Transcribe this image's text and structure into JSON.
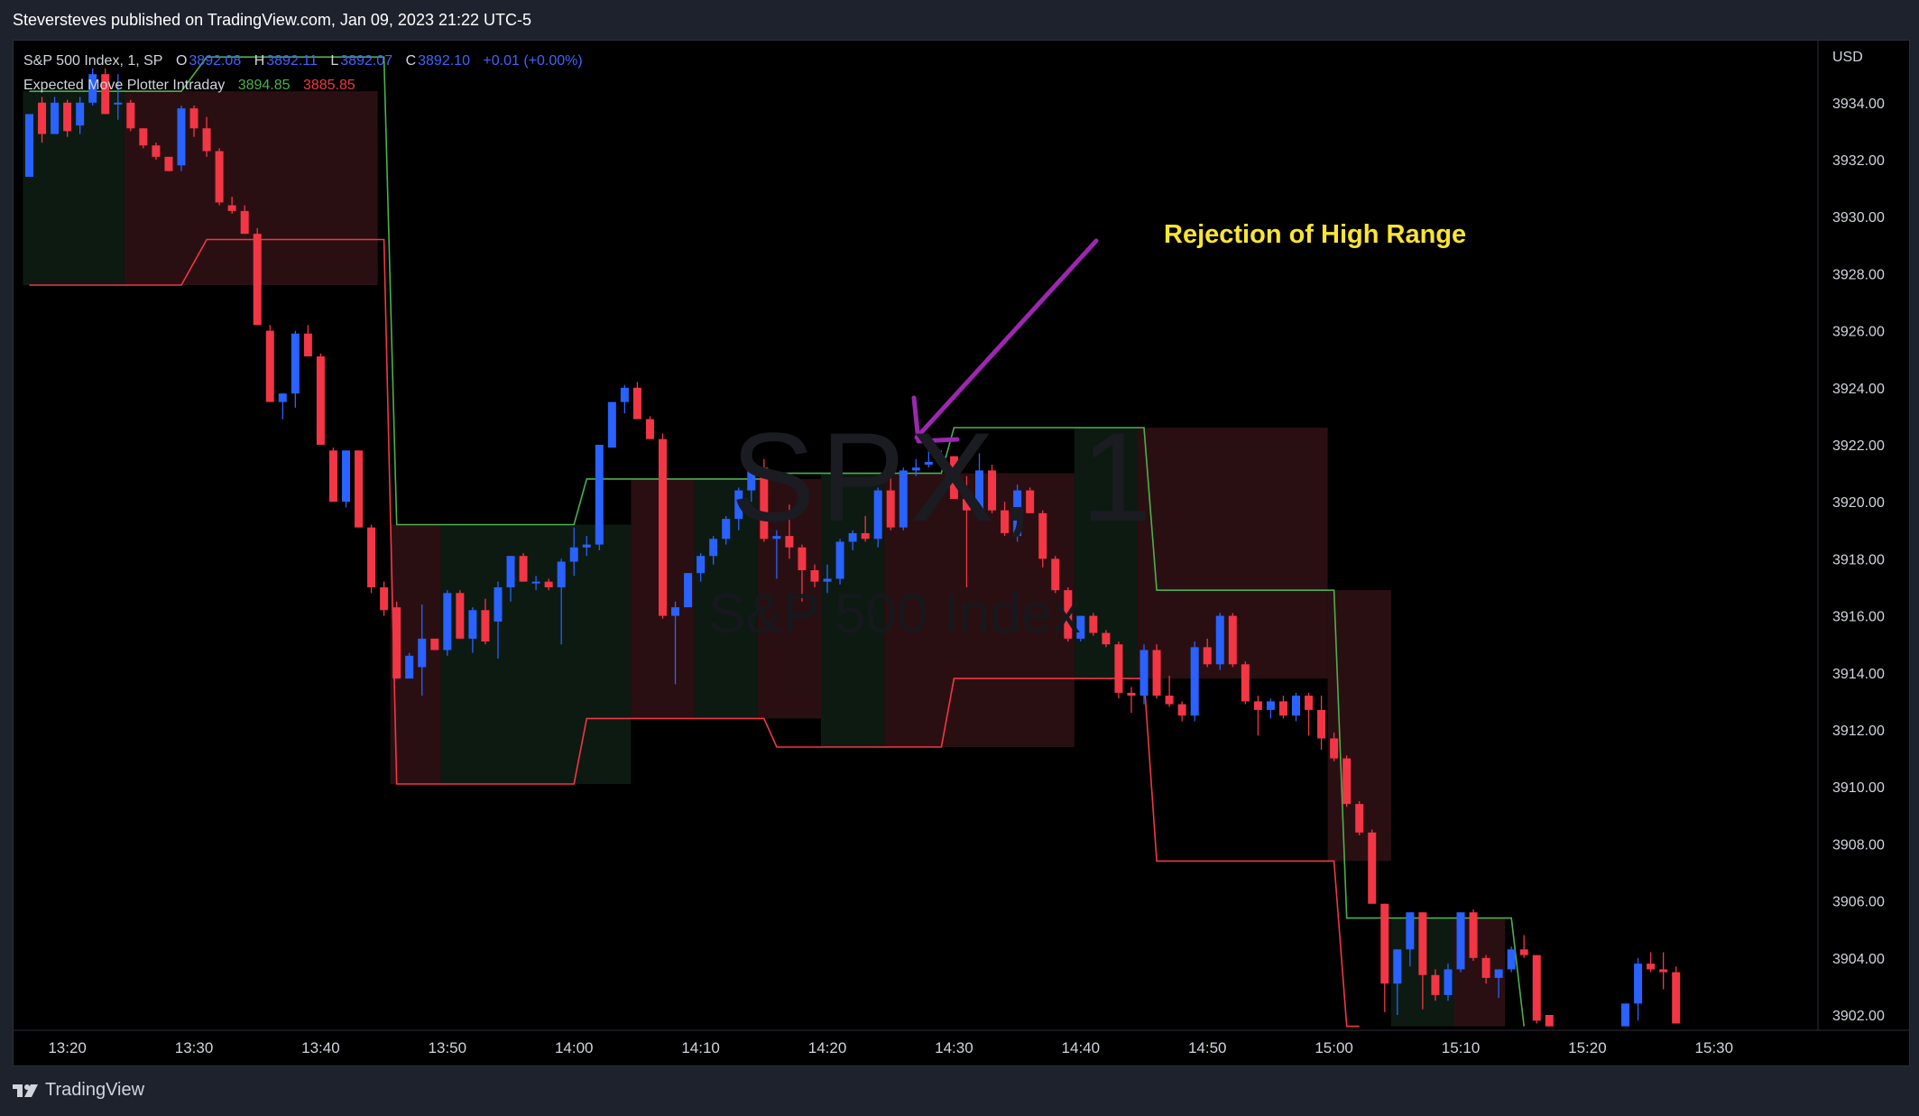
{
  "header": {
    "publish_text": "Steversteves published on TradingView.com, Jan 09, 2023 21:22 UTC-5"
  },
  "legend": {
    "symbol": "S&P 500 Index, 1, SP",
    "o_label": "O",
    "o_value": "3892.08",
    "h_label": "H",
    "h_value": "3892.11",
    "l_label": "L",
    "l_value": "3892.07",
    "c_label": "C",
    "c_value": "3892.10",
    "change": "+0.01 (+0.00%)",
    "indicator_name": "Expected Move Plotter Intraday",
    "indicator_high": "3894.85",
    "indicator_low": "3885.85"
  },
  "watermark": {
    "symbol": "SPX, 1",
    "name": "S&P 500 Index"
  },
  "annotation": {
    "text": "Rejection of High Range"
  },
  "footer": {
    "brand": "TradingView"
  },
  "colors": {
    "background": "#000000",
    "up": "#2962ff",
    "down": "#f23645",
    "upper_band": "#4caf50",
    "lower_band": "#f23645",
    "annotation": "#fbe531",
    "arrow": "#9c27b0"
  },
  "chart_data": {
    "type": "candlestick",
    "currency_label": "USD",
    "ylim": [
      3901.6,
      3935.6
    ],
    "y_ticks": [
      "3934.00",
      "3932.00",
      "3930.00",
      "3928.00",
      "3926.00",
      "3924.00",
      "3922.00",
      "3920.00",
      "3918.00",
      "3916.00",
      "3914.00",
      "3912.00",
      "3910.00",
      "3908.00",
      "3906.00",
      "3904.00",
      "3902.00"
    ],
    "x_ticks": [
      "13:20",
      "13:30",
      "13:40",
      "13:50",
      "14:00",
      "14:10",
      "14:20",
      "14:30",
      "14:40",
      "14:50",
      "15:00",
      "15:10",
      "15:20",
      "15:30"
    ],
    "candles_ohlc": [
      [
        3931.4,
        3933.6,
        3931.4,
        3933.6
      ],
      [
        3934.0,
        3934.2,
        3932.6,
        3932.9
      ],
      [
        3932.9,
        3934.2,
        3932.9,
        3934.0
      ],
      [
        3934.0,
        3934.1,
        3932.8,
        3933.0
      ],
      [
        3933.2,
        3934.2,
        3932.9,
        3934.0
      ],
      [
        3934.0,
        3935.2,
        3933.9,
        3935.0
      ],
      [
        3935.0,
        3935.2,
        3933.6,
        3933.6
      ],
      [
        3934.0,
        3935.0,
        3933.4,
        3934.0
      ],
      [
        3934.0,
        3934.1,
        3933.0,
        3933.1
      ],
      [
        3933.1,
        3933.1,
        3932.4,
        3932.5
      ],
      [
        3932.5,
        3932.6,
        3932.0,
        3932.1
      ],
      [
        3932.1,
        3932.1,
        3931.6,
        3931.6
      ],
      [
        3931.8,
        3933.9,
        3931.6,
        3933.8
      ],
      [
        3933.8,
        3933.9,
        3932.8,
        3933.1
      ],
      [
        3933.1,
        3933.5,
        3932.1,
        3932.3
      ],
      [
        3932.3,
        3932.4,
        3930.4,
        3930.5
      ],
      [
        3930.4,
        3930.7,
        3930.1,
        3930.2
      ],
      [
        3930.2,
        3930.4,
        3929.4,
        3929.4
      ],
      [
        3929.4,
        3929.6,
        3926.2,
        3926.2
      ],
      [
        3926.0,
        3926.2,
        3923.5,
        3923.5
      ],
      [
        3923.5,
        3923.8,
        3922.9,
        3923.8
      ],
      [
        3923.8,
        3926.0,
        3923.3,
        3925.9
      ],
      [
        3925.9,
        3926.2,
        3925.1,
        3925.1
      ],
      [
        3925.1,
        3925.2,
        3922.0,
        3922.0
      ],
      [
        3921.8,
        3921.9,
        3920.0,
        3920.0
      ],
      [
        3920.0,
        3921.8,
        3919.8,
        3921.8
      ],
      [
        3921.8,
        3921.8,
        3919.1,
        3919.1
      ],
      [
        3919.1,
        3919.2,
        3916.8,
        3917.0
      ],
      [
        3917.0,
        3917.2,
        3916.0,
        3916.2
      ],
      [
        3916.3,
        3916.5,
        3913.8,
        3913.8
      ],
      [
        3913.8,
        3914.0,
        3914.7,
        3914.6
      ],
      [
        3914.2,
        3916.4,
        3913.2,
        3915.2
      ],
      [
        3915.2,
        3915.2,
        3914.8,
        3914.8
      ],
      [
        3914.8,
        3916.9,
        3914.6,
        3916.8
      ],
      [
        3916.8,
        3916.9,
        3915.2,
        3915.2
      ],
      [
        3915.2,
        3916.3,
        3914.7,
        3916.2
      ],
      [
        3916.2,
        3916.6,
        3915.0,
        3915.1
      ],
      [
        3915.8,
        3917.2,
        3914.5,
        3917.0
      ],
      [
        3917.0,
        3918.1,
        3916.5,
        3918.1
      ],
      [
        3918.1,
        3918.2,
        3917.2,
        3917.2
      ],
      [
        3917.2,
        3917.4,
        3916.9,
        3917.2
      ],
      [
        3917.2,
        3917.3,
        3916.9,
        3917.0
      ],
      [
        3917.0,
        3918.0,
        3915.0,
        3917.9
      ],
      [
        3917.9,
        3919.1,
        3917.4,
        3918.4
      ],
      [
        3918.4,
        3918.8,
        3918.1,
        3918.5
      ],
      [
        3918.5,
        3922.0,
        3918.3,
        3922.0
      ],
      [
        3921.9,
        3923.5,
        3921.9,
        3923.5
      ],
      [
        3923.5,
        3924.1,
        3923.1,
        3924.0
      ],
      [
        3924.0,
        3924.2,
        3922.9,
        3922.9
      ],
      [
        3922.9,
        3923.0,
        3922.2,
        3922.2
      ],
      [
        3922.2,
        3922.4,
        3915.9,
        3916.0
      ],
      [
        3916.0,
        3916.5,
        3913.6,
        3916.3
      ],
      [
        3916.3,
        3917.5,
        3916.3,
        3917.5
      ],
      [
        3917.5,
        3918.2,
        3917.2,
        3918.1
      ],
      [
        3918.1,
        3918.8,
        3917.8,
        3918.7
      ],
      [
        3918.7,
        3919.5,
        3918.5,
        3919.4
      ],
      [
        3919.4,
        3920.5,
        3919.0,
        3920.4
      ],
      [
        3920.4,
        3921.5,
        3920.0,
        3921.2
      ],
      [
        3921.2,
        3921.5,
        3918.6,
        3918.7
      ],
      [
        3918.7,
        3919.0,
        3917.3,
        3918.8
      ],
      [
        3918.8,
        3919.9,
        3918.0,
        3918.4
      ],
      [
        3918.4,
        3918.5,
        3916.5,
        3917.6
      ],
      [
        3917.6,
        3917.8,
        3917.0,
        3917.2
      ],
      [
        3917.2,
        3917.8,
        3916.8,
        3917.3
      ],
      [
        3917.3,
        3918.7,
        3917.1,
        3918.6
      ],
      [
        3918.6,
        3919.0,
        3918.3,
        3918.9
      ],
      [
        3918.9,
        3919.5,
        3918.6,
        3918.7
      ],
      [
        3918.7,
        3920.5,
        3918.4,
        3920.4
      ],
      [
        3920.4,
        3921.0,
        3919.0,
        3919.1
      ],
      [
        3919.1,
        3921.2,
        3919.0,
        3921.1
      ],
      [
        3921.1,
        3921.5,
        3920.9,
        3921.2
      ],
      [
        3921.3,
        3921.9,
        3921.2,
        3921.4
      ],
      [
        3921.4,
        3921.8,
        3921.2,
        3921.6
      ],
      [
        3921.6,
        3921.6,
        3920.1,
        3920.1
      ],
      [
        3920.1,
        3920.9,
        3917.0,
        3919.7
      ],
      [
        3919.7,
        3921.7,
        3919.5,
        3921.1
      ],
      [
        3921.1,
        3921.3,
        3919.6,
        3919.7
      ],
      [
        3919.7,
        3920.0,
        3918.8,
        3918.9
      ],
      [
        3918.8,
        3920.6,
        3918.6,
        3920.4
      ],
      [
        3920.4,
        3920.5,
        3919.6,
        3919.6
      ],
      [
        3919.6,
        3919.7,
        3917.7,
        3918.0
      ],
      [
        3918.0,
        3918.1,
        3916.8,
        3916.9
      ],
      [
        3916.9,
        3917.0,
        3915.1,
        3915.2
      ],
      [
        3915.2,
        3916.0,
        3915.1,
        3916.0
      ],
      [
        3916.0,
        3916.1,
        3915.3,
        3915.4
      ],
      [
        3915.4,
        3915.5,
        3914.9,
        3915.0
      ],
      [
        3915.0,
        3915.1,
        3913.1,
        3913.3
      ],
      [
        3913.3,
        3913.5,
        3912.6,
        3913.2
      ],
      [
        3913.2,
        3915.0,
        3912.9,
        3914.8
      ],
      [
        3914.8,
        3915.0,
        3913.1,
        3913.2
      ],
      [
        3913.2,
        3913.9,
        3912.8,
        3912.9
      ],
      [
        3912.9,
        3913.0,
        3912.3,
        3912.5
      ],
      [
        3912.5,
        3915.1,
        3912.3,
        3914.9
      ],
      [
        3914.9,
        3915.2,
        3914.2,
        3914.3
      ],
      [
        3914.3,
        3916.1,
        3914.1,
        3916.0
      ],
      [
        3916.0,
        3916.1,
        3914.2,
        3914.3
      ],
      [
        3914.3,
        3914.4,
        3912.9,
        3913.0
      ],
      [
        3913.0,
        3913.2,
        3911.8,
        3912.7
      ],
      [
        3912.7,
        3913.1,
        3912.4,
        3913.0
      ],
      [
        3913.0,
        3913.2,
        3912.4,
        3912.5
      ],
      [
        3912.5,
        3913.3,
        3912.3,
        3913.2
      ],
      [
        3913.2,
        3913.3,
        3911.8,
        3912.7
      ],
      [
        3912.7,
        3913.2,
        3911.3,
        3911.7
      ],
      [
        3911.7,
        3911.9,
        3910.9,
        3911.0
      ],
      [
        3911.0,
        3911.1,
        3909.3,
        3909.4
      ],
      [
        3909.4,
        3909.5,
        3908.3,
        3908.4
      ],
      [
        3908.4,
        3908.5,
        3905.9,
        3905.9
      ],
      [
        3905.9,
        3905.9,
        3902.1,
        3903.1
      ],
      [
        3903.1,
        3904.3,
        3902.0,
        3904.3
      ],
      [
        3904.3,
        3905.6,
        3903.7,
        3905.6
      ],
      [
        3905.6,
        3905.6,
        3902.2,
        3903.4
      ],
      [
        3903.4,
        3903.6,
        3902.5,
        3902.7
      ],
      [
        3902.7,
        3903.8,
        3902.5,
        3903.6
      ],
      [
        3903.6,
        3905.6,
        3903.5,
        3905.6
      ],
      [
        3905.6,
        3905.7,
        3903.9,
        3904.0
      ],
      [
        3904.0,
        3904.1,
        3903.1,
        3903.3
      ],
      [
        3903.3,
        3903.5,
        3902.6,
        3903.6
      ],
      [
        3903.6,
        3904.4,
        3903.5,
        3904.3
      ],
      [
        3904.3,
        3904.8,
        3904.0,
        3904.1
      ],
      [
        3904.1,
        3904.1,
        3901.7,
        3901.8
      ],
      [
        3902.0,
        3902.0,
        3901.6,
        3901.6
      ],
      [
        null,
        null,
        null,
        null
      ],
      [
        null,
        null,
        null,
        null
      ],
      [
        null,
        null,
        null,
        null
      ],
      [
        null,
        null,
        null,
        null
      ],
      [
        null,
        null,
        null,
        null
      ],
      [
        3901.6,
        3902.4,
        3901.6,
        3902.4
      ],
      [
        3902.4,
        3904.0,
        3901.8,
        3903.8
      ],
      [
        3903.8,
        3904.2,
        3903.5,
        3903.6
      ],
      [
        3903.6,
        3904.2,
        3902.9,
        3903.5
      ],
      [
        3903.5,
        3903.7,
        3901.7,
        3901.7
      ]
    ],
    "upper_band": [
      [
        0,
        3934.4
      ],
      [
        12,
        3934.4
      ],
      [
        14,
        3935.6
      ],
      [
        28,
        3935.6
      ],
      [
        29,
        3919.2
      ],
      [
        43,
        3919.2
      ],
      [
        44,
        3920.8
      ],
      [
        58,
        3920.8
      ],
      [
        59,
        3921.0
      ],
      [
        72,
        3921.0
      ],
      [
        73,
        3922.6
      ],
      [
        88,
        3922.6
      ],
      [
        89,
        3916.9
      ],
      [
        103,
        3916.9
      ],
      [
        104,
        3905.4
      ],
      [
        117,
        3905.4
      ],
      [
        118,
        3901.6
      ]
    ],
    "lower_band": [
      [
        0,
        3927.6
      ],
      [
        12,
        3927.6
      ],
      [
        14,
        3929.2
      ],
      [
        28,
        3929.2
      ],
      [
        29,
        3910.1
      ],
      [
        43,
        3910.1
      ],
      [
        44,
        3912.4
      ],
      [
        58,
        3912.4
      ],
      [
        59,
        3911.4
      ],
      [
        72,
        3911.4
      ],
      [
        73,
        3913.8
      ],
      [
        88,
        3913.8
      ],
      [
        89,
        3907.4
      ],
      [
        103,
        3907.4
      ],
      [
        104,
        3901.6
      ],
      [
        105,
        3901.6
      ]
    ],
    "zones": [
      {
        "from": 0,
        "to": 8,
        "type": "up"
      },
      {
        "from": 8,
        "to": 28,
        "type": "down"
      },
      {
        "from": 29,
        "to": 33,
        "type": "down"
      },
      {
        "from": 33,
        "to": 48,
        "type": "up"
      },
      {
        "from": 48,
        "to": 53,
        "type": "down"
      },
      {
        "from": 53,
        "to": 58,
        "type": "up"
      },
      {
        "from": 58,
        "to": 63,
        "type": "down"
      },
      {
        "from": 63,
        "to": 68,
        "type": "up"
      },
      {
        "from": 68,
        "to": 83,
        "type": "down"
      },
      {
        "from": 83,
        "to": 88,
        "type": "up"
      },
      {
        "from": 88,
        "to": 103,
        "type": "down"
      },
      {
        "from": 103,
        "to": 108,
        "type": "down"
      },
      {
        "from": 108,
        "to": 113,
        "type": "up"
      },
      {
        "from": 113,
        "to": 117,
        "type": "down"
      }
    ]
  }
}
